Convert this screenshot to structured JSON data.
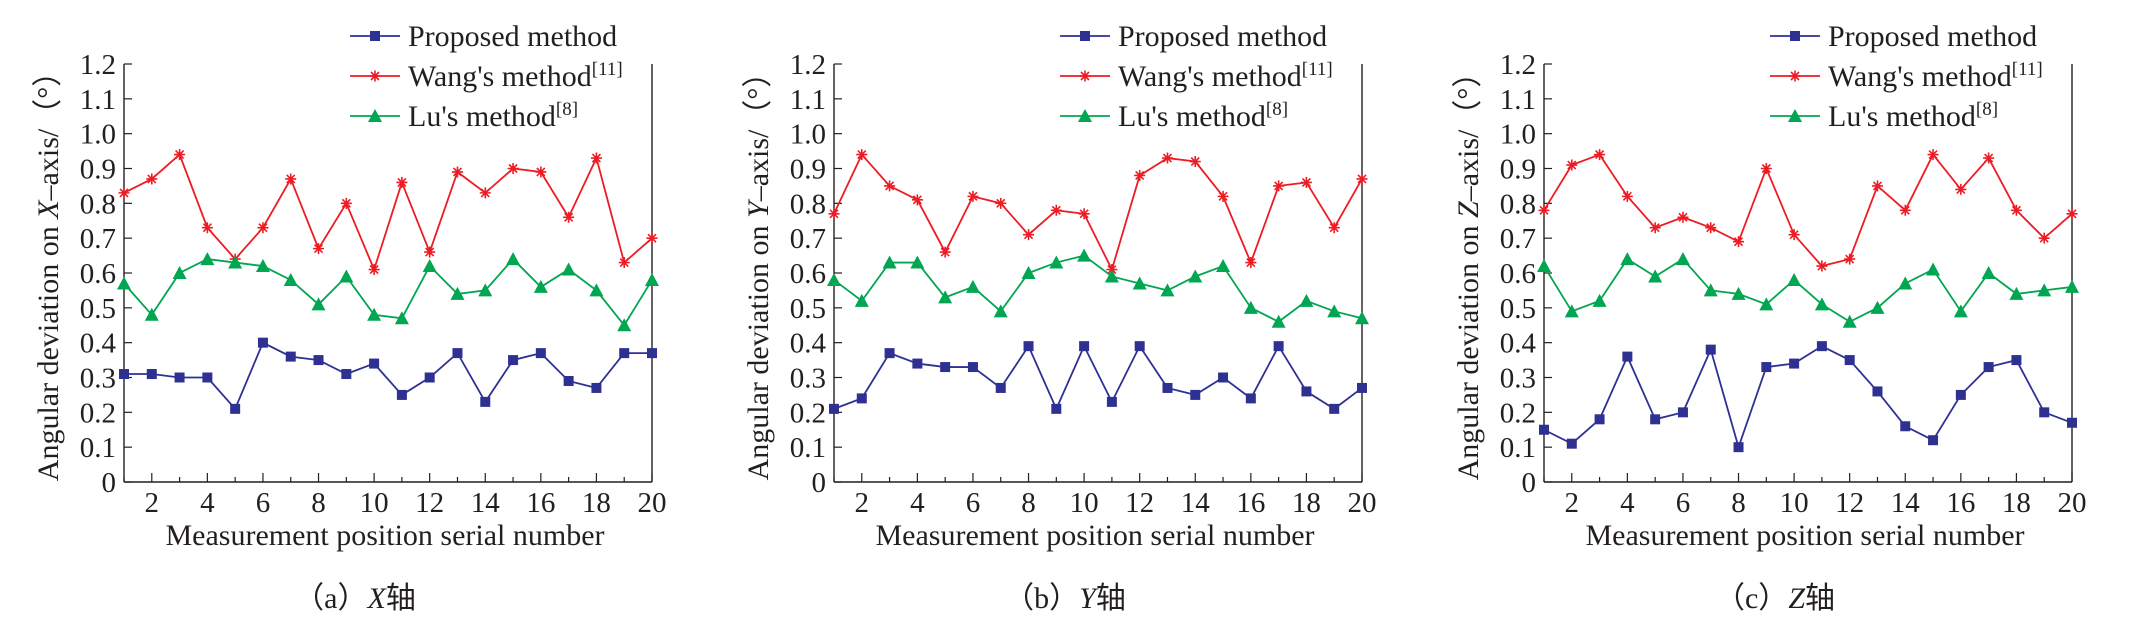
{
  "colors": {
    "proposed": "#2e3192",
    "wang": "#ed1c24",
    "lu": "#00a651",
    "axis": "#231f20"
  },
  "legend": {
    "proposed": "Proposed method",
    "wang": "Wang's method",
    "wang_ref": "[11]",
    "lu": "Lu's method",
    "lu_ref": "[8]"
  },
  "common": {
    "xlabel": "Measurement position serial number",
    "xticks": [
      "2",
      "4",
      "6",
      "8",
      "10",
      "12",
      "14",
      "16",
      "18",
      "20"
    ],
    "yticks": [
      "0",
      "0.1",
      "0.2",
      "0.3",
      "0.4",
      "0.5",
      "0.6",
      "0.7",
      "0.8",
      "0.9",
      "1.0",
      "1.1",
      "1.2"
    ]
  },
  "panels": [
    {
      "caption_prefix": "（a）",
      "caption_axis": "X",
      "caption_suffix": "轴",
      "ylabel_pre": "Angular deviation on ",
      "ylabel_axis": "X",
      "ylabel_post": "–axis/（°）"
    },
    {
      "caption_prefix": "（b）",
      "caption_axis": "Y",
      "caption_suffix": "轴",
      "ylabel_pre": "Angular deviation on ",
      "ylabel_axis": "Y",
      "ylabel_post": "–axis/（°）"
    },
    {
      "caption_prefix": "（c）",
      "caption_axis": "Z",
      "caption_suffix": "轴",
      "ylabel_pre": "Angular deviation on ",
      "ylabel_axis": "Z",
      "ylabel_post": "–axis/（°）"
    }
  ],
  "chart_data": [
    {
      "type": "line",
      "xlabel": "Measurement position serial number",
      "ylabel": "Angular deviation on X–axis/（°）",
      "xlim": [
        1,
        20
      ],
      "ylim": [
        0,
        1.2
      ],
      "x": [
        1,
        2,
        3,
        4,
        5,
        6,
        7,
        8,
        9,
        10,
        11,
        12,
        13,
        14,
        15,
        16,
        17,
        18,
        19,
        20
      ],
      "legend_position": "top-right",
      "series": [
        {
          "name": "Proposed method",
          "marker": "square",
          "values": [
            0.31,
            0.31,
            0.3,
            0.3,
            0.21,
            0.4,
            0.36,
            0.35,
            0.31,
            0.34,
            0.25,
            0.3,
            0.37,
            0.23,
            0.35,
            0.37,
            0.29,
            0.27,
            0.37,
            0.37
          ]
        },
        {
          "name": "Wang's method[11]",
          "marker": "star",
          "values": [
            0.83,
            0.87,
            0.94,
            0.73,
            0.64,
            0.73,
            0.87,
            0.67,
            0.8,
            0.61,
            0.86,
            0.66,
            0.89,
            0.83,
            0.9,
            0.89,
            0.76,
            0.93,
            0.63,
            0.7
          ]
        },
        {
          "name": "Lu's method[8]",
          "marker": "triangle",
          "values": [
            0.57,
            0.48,
            0.6,
            0.64,
            0.63,
            0.62,
            0.58,
            0.51,
            0.59,
            0.48,
            0.47,
            0.62,
            0.54,
            0.55,
            0.64,
            0.56,
            0.61,
            0.55,
            0.45,
            0.58
          ]
        }
      ]
    },
    {
      "type": "line",
      "xlabel": "Measurement position serial number",
      "ylabel": "Angular deviation on Y–axis/（°）",
      "xlim": [
        1,
        20
      ],
      "ylim": [
        0,
        1.2
      ],
      "x": [
        1,
        2,
        3,
        4,
        5,
        6,
        7,
        8,
        9,
        10,
        11,
        12,
        13,
        14,
        15,
        16,
        17,
        18,
        19,
        20
      ],
      "legend_position": "top-right",
      "series": [
        {
          "name": "Proposed method",
          "marker": "square",
          "values": [
            0.21,
            0.24,
            0.37,
            0.34,
            0.33,
            0.33,
            0.27,
            0.39,
            0.21,
            0.39,
            0.23,
            0.39,
            0.27,
            0.25,
            0.3,
            0.24,
            0.39,
            0.26,
            0.21,
            0.27
          ]
        },
        {
          "name": "Wang's method[11]",
          "marker": "star",
          "values": [
            0.77,
            0.94,
            0.85,
            0.81,
            0.66,
            0.82,
            0.8,
            0.71,
            0.78,
            0.77,
            0.61,
            0.88,
            0.93,
            0.92,
            0.82,
            0.63,
            0.85,
            0.86,
            0.73,
            0.87
          ]
        },
        {
          "name": "Lu's method[8]",
          "marker": "triangle",
          "values": [
            0.58,
            0.52,
            0.63,
            0.63,
            0.53,
            0.56,
            0.49,
            0.6,
            0.63,
            0.65,
            0.59,
            0.57,
            0.55,
            0.59,
            0.62,
            0.5,
            0.46,
            0.52,
            0.49,
            0.47
          ]
        }
      ]
    },
    {
      "type": "line",
      "xlabel": "Measurement position serial number",
      "ylabel": "Angular deviation on Z–axis/（°）",
      "xlim": [
        1,
        20
      ],
      "ylim": [
        0,
        1.2
      ],
      "x": [
        1,
        2,
        3,
        4,
        5,
        6,
        7,
        8,
        9,
        10,
        11,
        12,
        13,
        14,
        15,
        16,
        17,
        18,
        19,
        20
      ],
      "legend_position": "top-right",
      "series": [
        {
          "name": "Proposed method",
          "marker": "square",
          "values": [
            0.15,
            0.11,
            0.18,
            0.36,
            0.18,
            0.2,
            0.38,
            0.1,
            0.33,
            0.34,
            0.39,
            0.35,
            0.26,
            0.16,
            0.12,
            0.25,
            0.33,
            0.35,
            0.2,
            0.17
          ]
        },
        {
          "name": "Wang's method[11]",
          "marker": "star",
          "values": [
            0.78,
            0.91,
            0.94,
            0.82,
            0.73,
            0.76,
            0.73,
            0.69,
            0.9,
            0.71,
            0.62,
            0.64,
            0.85,
            0.78,
            0.94,
            0.84,
            0.93,
            0.78,
            0.7,
            0.77
          ]
        },
        {
          "name": "Lu's method[8]",
          "marker": "triangle",
          "values": [
            0.62,
            0.49,
            0.52,
            0.64,
            0.59,
            0.64,
            0.55,
            0.54,
            0.51,
            0.58,
            0.51,
            0.46,
            0.5,
            0.57,
            0.61,
            0.49,
            0.6,
            0.54,
            0.55,
            0.56
          ]
        }
      ]
    }
  ]
}
